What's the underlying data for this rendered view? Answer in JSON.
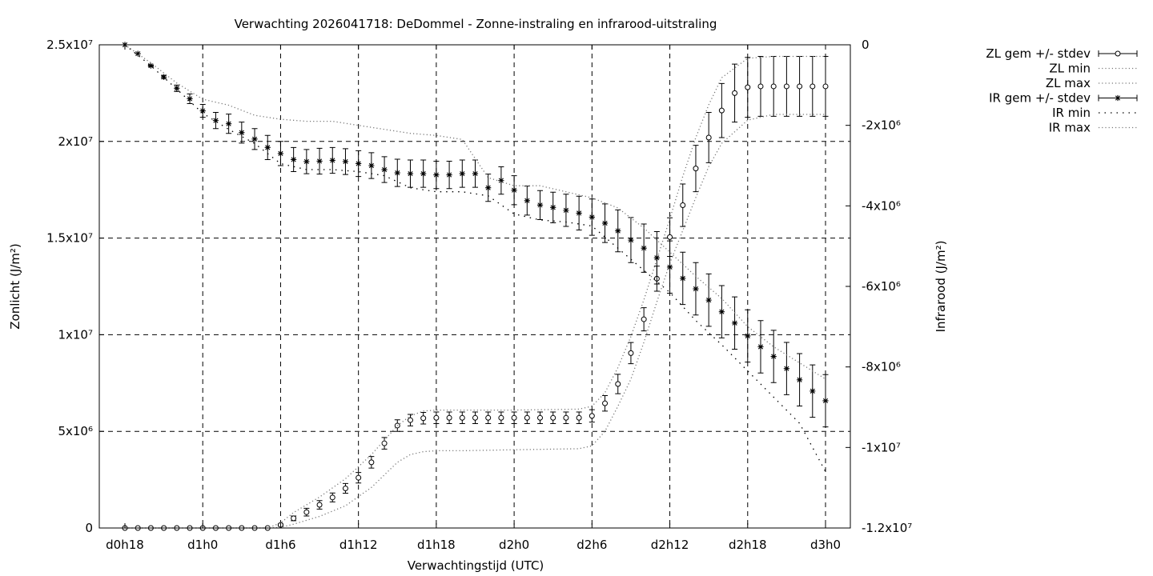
{
  "chart_data": {
    "type": "line",
    "title": "Verwachting 2026041718: DeDommel - Zonne-instraling en infrarood-uitstraling",
    "xlabel": "Verwachtingstijd (UTC)",
    "ylabel": "Zonlicht (J/m²)",
    "y2label": "Infrarood (J/m²)",
    "xlim": [
      18,
      72
    ],
    "ylim": [
      0,
      25000000
    ],
    "y2lim": [
      -12000000,
      0
    ],
    "x_ticks": [
      {
        "value": 18,
        "label": "d0h18"
      },
      {
        "value": 24,
        "label": "d1h0"
      },
      {
        "value": 30,
        "label": "d1h6"
      },
      {
        "value": 36,
        "label": "d1h12"
      },
      {
        "value": 42,
        "label": "d1h18"
      },
      {
        "value": 48,
        "label": "d2h0"
      },
      {
        "value": 54,
        "label": "d2h6"
      },
      {
        "value": 60,
        "label": "d2h12"
      },
      {
        "value": 66,
        "label": "d2h18"
      },
      {
        "value": 72,
        "label": "d3h0"
      }
    ],
    "y_ticks": [
      {
        "value": 0,
        "label": "0"
      },
      {
        "value": 5000000,
        "label": "5x10⁶"
      },
      {
        "value": 10000000,
        "label": "1x10⁷"
      },
      {
        "value": 15000000,
        "label": "1.5x10⁷"
      },
      {
        "value": 20000000,
        "label": "2x10⁷"
      },
      {
        "value": 25000000,
        "label": "2.5x10⁷"
      }
    ],
    "y2_ticks": [
      {
        "value": 0,
        "label": "0"
      },
      {
        "value": -2000000,
        "label": "-2x10⁶"
      },
      {
        "value": -4000000,
        "label": "-4x10⁶"
      },
      {
        "value": -6000000,
        "label": "-6x10⁶"
      },
      {
        "value": -8000000,
        "label": "-8x10⁶"
      },
      {
        "value": -10000000,
        "label": "-1x10⁷"
      },
      {
        "value": -12000000,
        "label": "-1.2x10⁷"
      }
    ],
    "grid": true,
    "legend_position": "outside-top-right",
    "series": [
      {
        "name": "ZL gem +/- stdev",
        "axis": "y",
        "style": "errorbar-circle",
        "x": [
          18,
          19,
          20,
          21,
          22,
          23,
          24,
          25,
          26,
          27,
          28,
          29,
          30,
          31,
          32,
          33,
          34,
          35,
          36,
          37,
          38,
          39,
          40,
          41,
          42,
          43,
          44,
          45,
          46,
          47,
          48,
          49,
          50,
          51,
          52,
          53,
          54,
          55,
          56,
          57,
          58,
          59,
          60,
          61,
          62,
          63,
          64,
          65,
          66,
          67,
          68,
          69,
          70,
          71,
          72
        ],
        "values": [
          0,
          0,
          0,
          0,
          0,
          0,
          0,
          0,
          0,
          0,
          0,
          0,
          160000,
          500000,
          820000,
          1200000,
          1580000,
          2050000,
          2600000,
          3400000,
          4380000,
          5300000,
          5580000,
          5680000,
          5700000,
          5700000,
          5700000,
          5700000,
          5700000,
          5700000,
          5700000,
          5700000,
          5700000,
          5700000,
          5700000,
          5700000,
          5800000,
          6450000,
          7450000,
          9050000,
          10800000,
          12900000,
          15050000,
          16700000,
          18600000,
          20200000,
          21600000,
          22500000,
          22800000,
          22850000,
          22850000,
          22850000,
          22850000,
          22850000,
          22850000
        ],
        "stdev": [
          0,
          0,
          0,
          0,
          0,
          0,
          0,
          0,
          0,
          0,
          0,
          0,
          50000,
          120000,
          200000,
          220000,
          230000,
          250000,
          270000,
          300000,
          300000,
          300000,
          300000,
          300000,
          300000,
          300000,
          300000,
          300000,
          300000,
          300000,
          300000,
          300000,
          300000,
          300000,
          300000,
          300000,
          320000,
          400000,
          500000,
          550000,
          600000,
          650000,
          1000000,
          1100000,
          1200000,
          1300000,
          1400000,
          1500000,
          1550000,
          1550000,
          1550000,
          1550000,
          1550000,
          1550000,
          1550000
        ]
      },
      {
        "name": "ZL min",
        "axis": "y",
        "style": "dotted",
        "x": [
          18,
          24,
          29,
          30,
          31,
          33,
          35,
          37,
          39,
          40,
          41,
          42,
          44,
          48,
          53,
          54,
          55,
          56,
          57,
          58,
          59,
          60,
          61,
          62,
          63,
          64,
          66,
          68,
          70,
          72
        ],
        "values": [
          0,
          0,
          0,
          30000,
          200000,
          600000,
          1150000,
          2100000,
          3400000,
          3800000,
          3950000,
          4000000,
          4000000,
          4050000,
          4100000,
          4250000,
          5000000,
          6300000,
          7700000,
          9600000,
          11700000,
          13700000,
          15400000,
          17100000,
          18700000,
          19900000,
          21100000,
          21400000,
          21400000,
          21400000
        ]
      },
      {
        "name": "ZL max",
        "axis": "y",
        "style": "dotted",
        "x": [
          18,
          24,
          29,
          30,
          31,
          33,
          35,
          37,
          39,
          40,
          41,
          42,
          44,
          48,
          53,
          54,
          55,
          56,
          57,
          58,
          59,
          60,
          61,
          62,
          63,
          64,
          66,
          68,
          70,
          72
        ],
        "values": [
          0,
          0,
          0,
          260000,
          800000,
          1600000,
          2550000,
          3800000,
          5300000,
          5800000,
          6050000,
          6100000,
          6100000,
          6100000,
          6150000,
          6300000,
          7000000,
          8300000,
          9900000,
          11800000,
          13900000,
          16000000,
          18200000,
          20200000,
          21900000,
          23300000,
          24300000,
          24400000,
          24400000,
          24400000
        ]
      },
      {
        "name": "IR gem +/- stdev",
        "axis": "y2",
        "style": "errorbar-star",
        "x": [
          18,
          19,
          20,
          21,
          22,
          23,
          24,
          25,
          26,
          27,
          28,
          29,
          30,
          31,
          32,
          33,
          34,
          35,
          36,
          37,
          38,
          39,
          40,
          41,
          42,
          43,
          44,
          45,
          46,
          47,
          48,
          49,
          50,
          51,
          52,
          53,
          54,
          55,
          56,
          57,
          58,
          59,
          60,
          61,
          62,
          63,
          64,
          65,
          66,
          67,
          68,
          69,
          70,
          71,
          72
        ],
        "values": [
          0,
          -220000,
          -520000,
          -800000,
          -1080000,
          -1340000,
          -1640000,
          -1880000,
          -1960000,
          -2180000,
          -2340000,
          -2550000,
          -2700000,
          -2850000,
          -2900000,
          -2890000,
          -2870000,
          -2900000,
          -2950000,
          -3000000,
          -3100000,
          -3180000,
          -3200000,
          -3200000,
          -3230000,
          -3230000,
          -3200000,
          -3200000,
          -3550000,
          -3370000,
          -3610000,
          -3870000,
          -3980000,
          -4040000,
          -4110000,
          -4180000,
          -4280000,
          -4430000,
          -4620000,
          -4850000,
          -5050000,
          -5290000,
          -5520000,
          -5800000,
          -6060000,
          -6340000,
          -6630000,
          -6910000,
          -7230000,
          -7500000,
          -7740000,
          -8040000,
          -8320000,
          -8600000,
          -8840000
        ],
        "stdev": [
          0,
          0,
          20000,
          40000,
          80000,
          120000,
          160000,
          200000,
          240000,
          260000,
          260000,
          300000,
          300000,
          300000,
          300000,
          320000,
          320000,
          320000,
          320000,
          320000,
          320000,
          340000,
          340000,
          340000,
          340000,
          340000,
          340000,
          340000,
          340000,
          340000,
          360000,
          360000,
          360000,
          380000,
          400000,
          420000,
          450000,
          480000,
          520000,
          560000,
          600000,
          650000,
          650000,
          650000,
          650000,
          650000,
          650000,
          650000,
          650000,
          650000,
          650000,
          650000,
          650000,
          650000,
          650000
        ]
      },
      {
        "name": "IR min",
        "axis": "y2",
        "style": "dotted-sparse",
        "x": [
          18,
          20,
          22,
          24,
          26,
          28,
          30,
          32,
          34,
          36,
          38,
          40,
          42,
          44,
          46,
          48,
          50,
          52,
          54,
          56,
          58,
          60,
          62,
          64,
          66,
          68,
          70,
          72
        ],
        "values": [
          0,
          -520000,
          -1100000,
          -1700000,
          -2100000,
          -2450000,
          -2950000,
          -3100000,
          -3100000,
          -3150000,
          -3250000,
          -3550000,
          -3650000,
          -3650000,
          -3750000,
          -4200000,
          -4350000,
          -4400000,
          -4500000,
          -5050000,
          -5600000,
          -6150000,
          -6850000,
          -7450000,
          -8100000,
          -8750000,
          -9400000,
          -10600000
        ]
      },
      {
        "name": "IR max",
        "axis": "y2",
        "style": "dotted",
        "x": [
          18,
          20,
          22,
          24,
          26,
          28,
          30,
          32,
          34,
          36,
          38,
          40,
          42,
          44,
          46,
          48,
          50,
          52,
          54,
          56,
          58,
          60,
          62,
          64,
          66,
          68,
          70,
          72
        ],
        "values": [
          0,
          -450000,
          -950000,
          -1350000,
          -1500000,
          -1750000,
          -1850000,
          -1900000,
          -1900000,
          -2000000,
          -2100000,
          -2200000,
          -2250000,
          -2350000,
          -3300000,
          -3500000,
          -3500000,
          -3650000,
          -3800000,
          -4050000,
          -4550000,
          -5150000,
          -5750000,
          -6300000,
          -7000000,
          -7500000,
          -7900000,
          -8300000
        ]
      }
    ]
  }
}
